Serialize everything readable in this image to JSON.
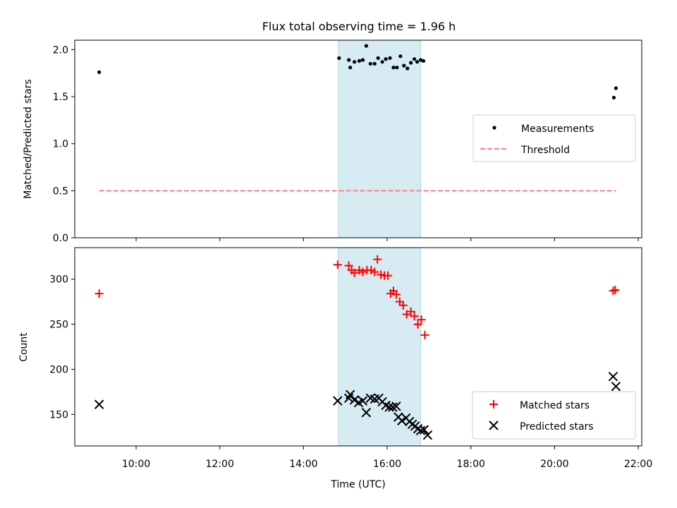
{
  "figure": {
    "title": "Flux total observing time = 1.96 h",
    "xlabel": "Time (UTC)",
    "x_ticks": [
      "10:00",
      "12:00",
      "14:00",
      "16:00",
      "18:00",
      "20:00",
      "22:00"
    ],
    "highlight_color": "#add8e6",
    "highlight_range": [
      "14:50",
      "16:48"
    ]
  },
  "chart_data": [
    {
      "type": "scatter",
      "title": "Flux total observing time = 1.96 h",
      "xlabel": "",
      "ylabel": "Matched/Predicted stars",
      "xlim": [
        "08:32",
        "22:05"
      ],
      "ylim": [
        0,
        2.1
      ],
      "y_ticks": [
        "0.0",
        "0.5",
        "1.0",
        "1.5",
        "2.0"
      ],
      "legend_position": "center-right",
      "series": [
        {
          "name": "Measurements",
          "type": "scatter",
          "marker": "dot",
          "color": "#000000",
          "points": [
            [
              "09:07",
              1.76
            ],
            [
              "14:51",
              1.91
            ],
            [
              "15:05",
              1.89
            ],
            [
              "15:07",
              1.81
            ],
            [
              "15:13",
              1.87
            ],
            [
              "15:20",
              1.88
            ],
            [
              "15:25",
              1.89
            ],
            [
              "15:30",
              2.04
            ],
            [
              "15:36",
              1.85
            ],
            [
              "15:42",
              1.85
            ],
            [
              "15:47",
              1.91
            ],
            [
              "15:53",
              1.87
            ],
            [
              "15:58",
              1.9
            ],
            [
              "16:04",
              1.91
            ],
            [
              "16:09",
              1.81
            ],
            [
              "16:14",
              1.81
            ],
            [
              "16:19",
              1.93
            ],
            [
              "16:24",
              1.83
            ],
            [
              "16:29",
              1.8
            ],
            [
              "16:34",
              1.86
            ],
            [
              "16:39",
              1.9
            ],
            [
              "16:43",
              1.87
            ],
            [
              "16:48",
              1.89
            ],
            [
              "16:52",
              1.88
            ],
            [
              "21:25",
              1.49
            ],
            [
              "21:28",
              1.59
            ]
          ]
        },
        {
          "name": "Threshold",
          "type": "line",
          "style": "dashed",
          "color": "#ff7f7f",
          "points": [
            [
              "09:07",
              0.5
            ],
            [
              "21:28",
              0.5
            ]
          ]
        }
      ]
    },
    {
      "type": "scatter",
      "xlabel": "Time (UTC)",
      "ylabel": "Count",
      "xlim": [
        "08:32",
        "22:05"
      ],
      "ylim": [
        115,
        335
      ],
      "y_ticks": [
        "150",
        "200",
        "250",
        "300"
      ],
      "legend_position": "lower-right",
      "series": [
        {
          "name": "Matched stars",
          "type": "scatter",
          "marker": "plus",
          "color": "#ff0000",
          "points": [
            [
              "09:07",
              284
            ],
            [
              "14:49",
              316
            ],
            [
              "15:05",
              315
            ],
            [
              "15:09",
              310
            ],
            [
              "15:13",
              307
            ],
            [
              "15:20",
              310
            ],
            [
              "15:25",
              308
            ],
            [
              "15:31",
              310
            ],
            [
              "15:37",
              310
            ],
            [
              "15:42",
              308
            ],
            [
              "15:46",
              322
            ],
            [
              "15:51",
              305
            ],
            [
              "15:56",
              304
            ],
            [
              "16:01",
              304
            ],
            [
              "16:05",
              284
            ],
            [
              "16:09",
              287
            ],
            [
              "16:13",
              283
            ],
            [
              "16:18",
              275
            ],
            [
              "16:23",
              271
            ],
            [
              "16:28",
              261
            ],
            [
              "16:34",
              264
            ],
            [
              "16:39",
              259
            ],
            [
              "16:44",
              250
            ],
            [
              "16:49",
              255
            ],
            [
              "16:54",
              238
            ],
            [
              "21:24",
              287
            ],
            [
              "21:27",
              288
            ]
          ]
        },
        {
          "name": "Predicted stars",
          "type": "scatter",
          "marker": "x",
          "color": "#000000",
          "points": [
            [
              "09:07",
              161
            ],
            [
              "14:49",
              165
            ],
            [
              "15:05",
              168
            ],
            [
              "15:07",
              172
            ],
            [
              "15:13",
              166
            ],
            [
              "15:19",
              163
            ],
            [
              "15:25",
              165
            ],
            [
              "15:30",
              152
            ],
            [
              "15:36",
              168
            ],
            [
              "15:42",
              167
            ],
            [
              "15:48",
              168
            ],
            [
              "15:53",
              164
            ],
            [
              "15:58",
              160
            ],
            [
              "16:03",
              158
            ],
            [
              "16:08",
              158
            ],
            [
              "16:13",
              159
            ],
            [
              "16:16",
              147
            ],
            [
              "16:21",
              143
            ],
            [
              "16:27",
              146
            ],
            [
              "16:32",
              142
            ],
            [
              "16:36",
              139
            ],
            [
              "16:40",
              137
            ],
            [
              "16:44",
              134
            ],
            [
              "16:48",
              132
            ],
            [
              "16:53",
              133
            ],
            [
              "16:58",
              127
            ],
            [
              "21:24",
              192
            ],
            [
              "21:28",
              181
            ]
          ]
        }
      ]
    }
  ]
}
